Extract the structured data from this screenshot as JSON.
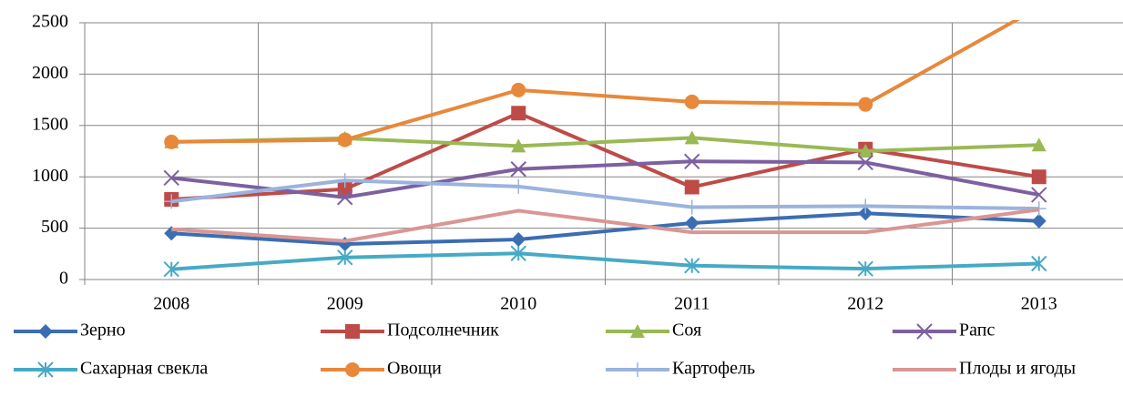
{
  "chart_data": {
    "type": "line",
    "categories": [
      "2008",
      "2009",
      "2010",
      "2011",
      "2012",
      "2013"
    ],
    "series": [
      {
        "name": "Зерно",
        "color": "#3b6db3",
        "marker": "diamond",
        "values": [
          450,
          345,
          390,
          550,
          645,
          570
        ]
      },
      {
        "name": "Подсолнечник",
        "color": "#be4b48",
        "marker": "square",
        "values": [
          780,
          880,
          1620,
          900,
          1270,
          1000
        ]
      },
      {
        "name": "Соя",
        "color": "#98b954",
        "marker": "triangle",
        "values": [
          1340,
          1375,
          1300,
          1380,
          1250,
          1310
        ]
      },
      {
        "name": "Рапс",
        "color": "#7d60a0",
        "marker": "x",
        "values": [
          990,
          800,
          1075,
          1150,
          1140,
          825
        ]
      },
      {
        "name": "Сахарная свекла",
        "color": "#46aac5",
        "marker": "star",
        "values": [
          100,
          215,
          255,
          135,
          105,
          155
        ]
      },
      {
        "name": "Овощи",
        "color": "#e8883a",
        "marker": "circle",
        "values": [
          1340,
          1360,
          1845,
          1730,
          1705,
          2650
        ]
      },
      {
        "name": "Картофель",
        "color": "#9bb3dd",
        "marker": "plus",
        "values": [
          760,
          965,
          905,
          705,
          715,
          690
        ]
      },
      {
        "name": "Плоды и ягоды",
        "color": "#d99694",
        "marker": "none",
        "values": [
          490,
          375,
          670,
          460,
          460,
          680
        ]
      }
    ],
    "ylim": [
      0,
      2500
    ],
    "yticks": [
      0,
      500,
      1000,
      1500,
      2000,
      2500
    ],
    "grid": true,
    "legend": "bottom"
  }
}
